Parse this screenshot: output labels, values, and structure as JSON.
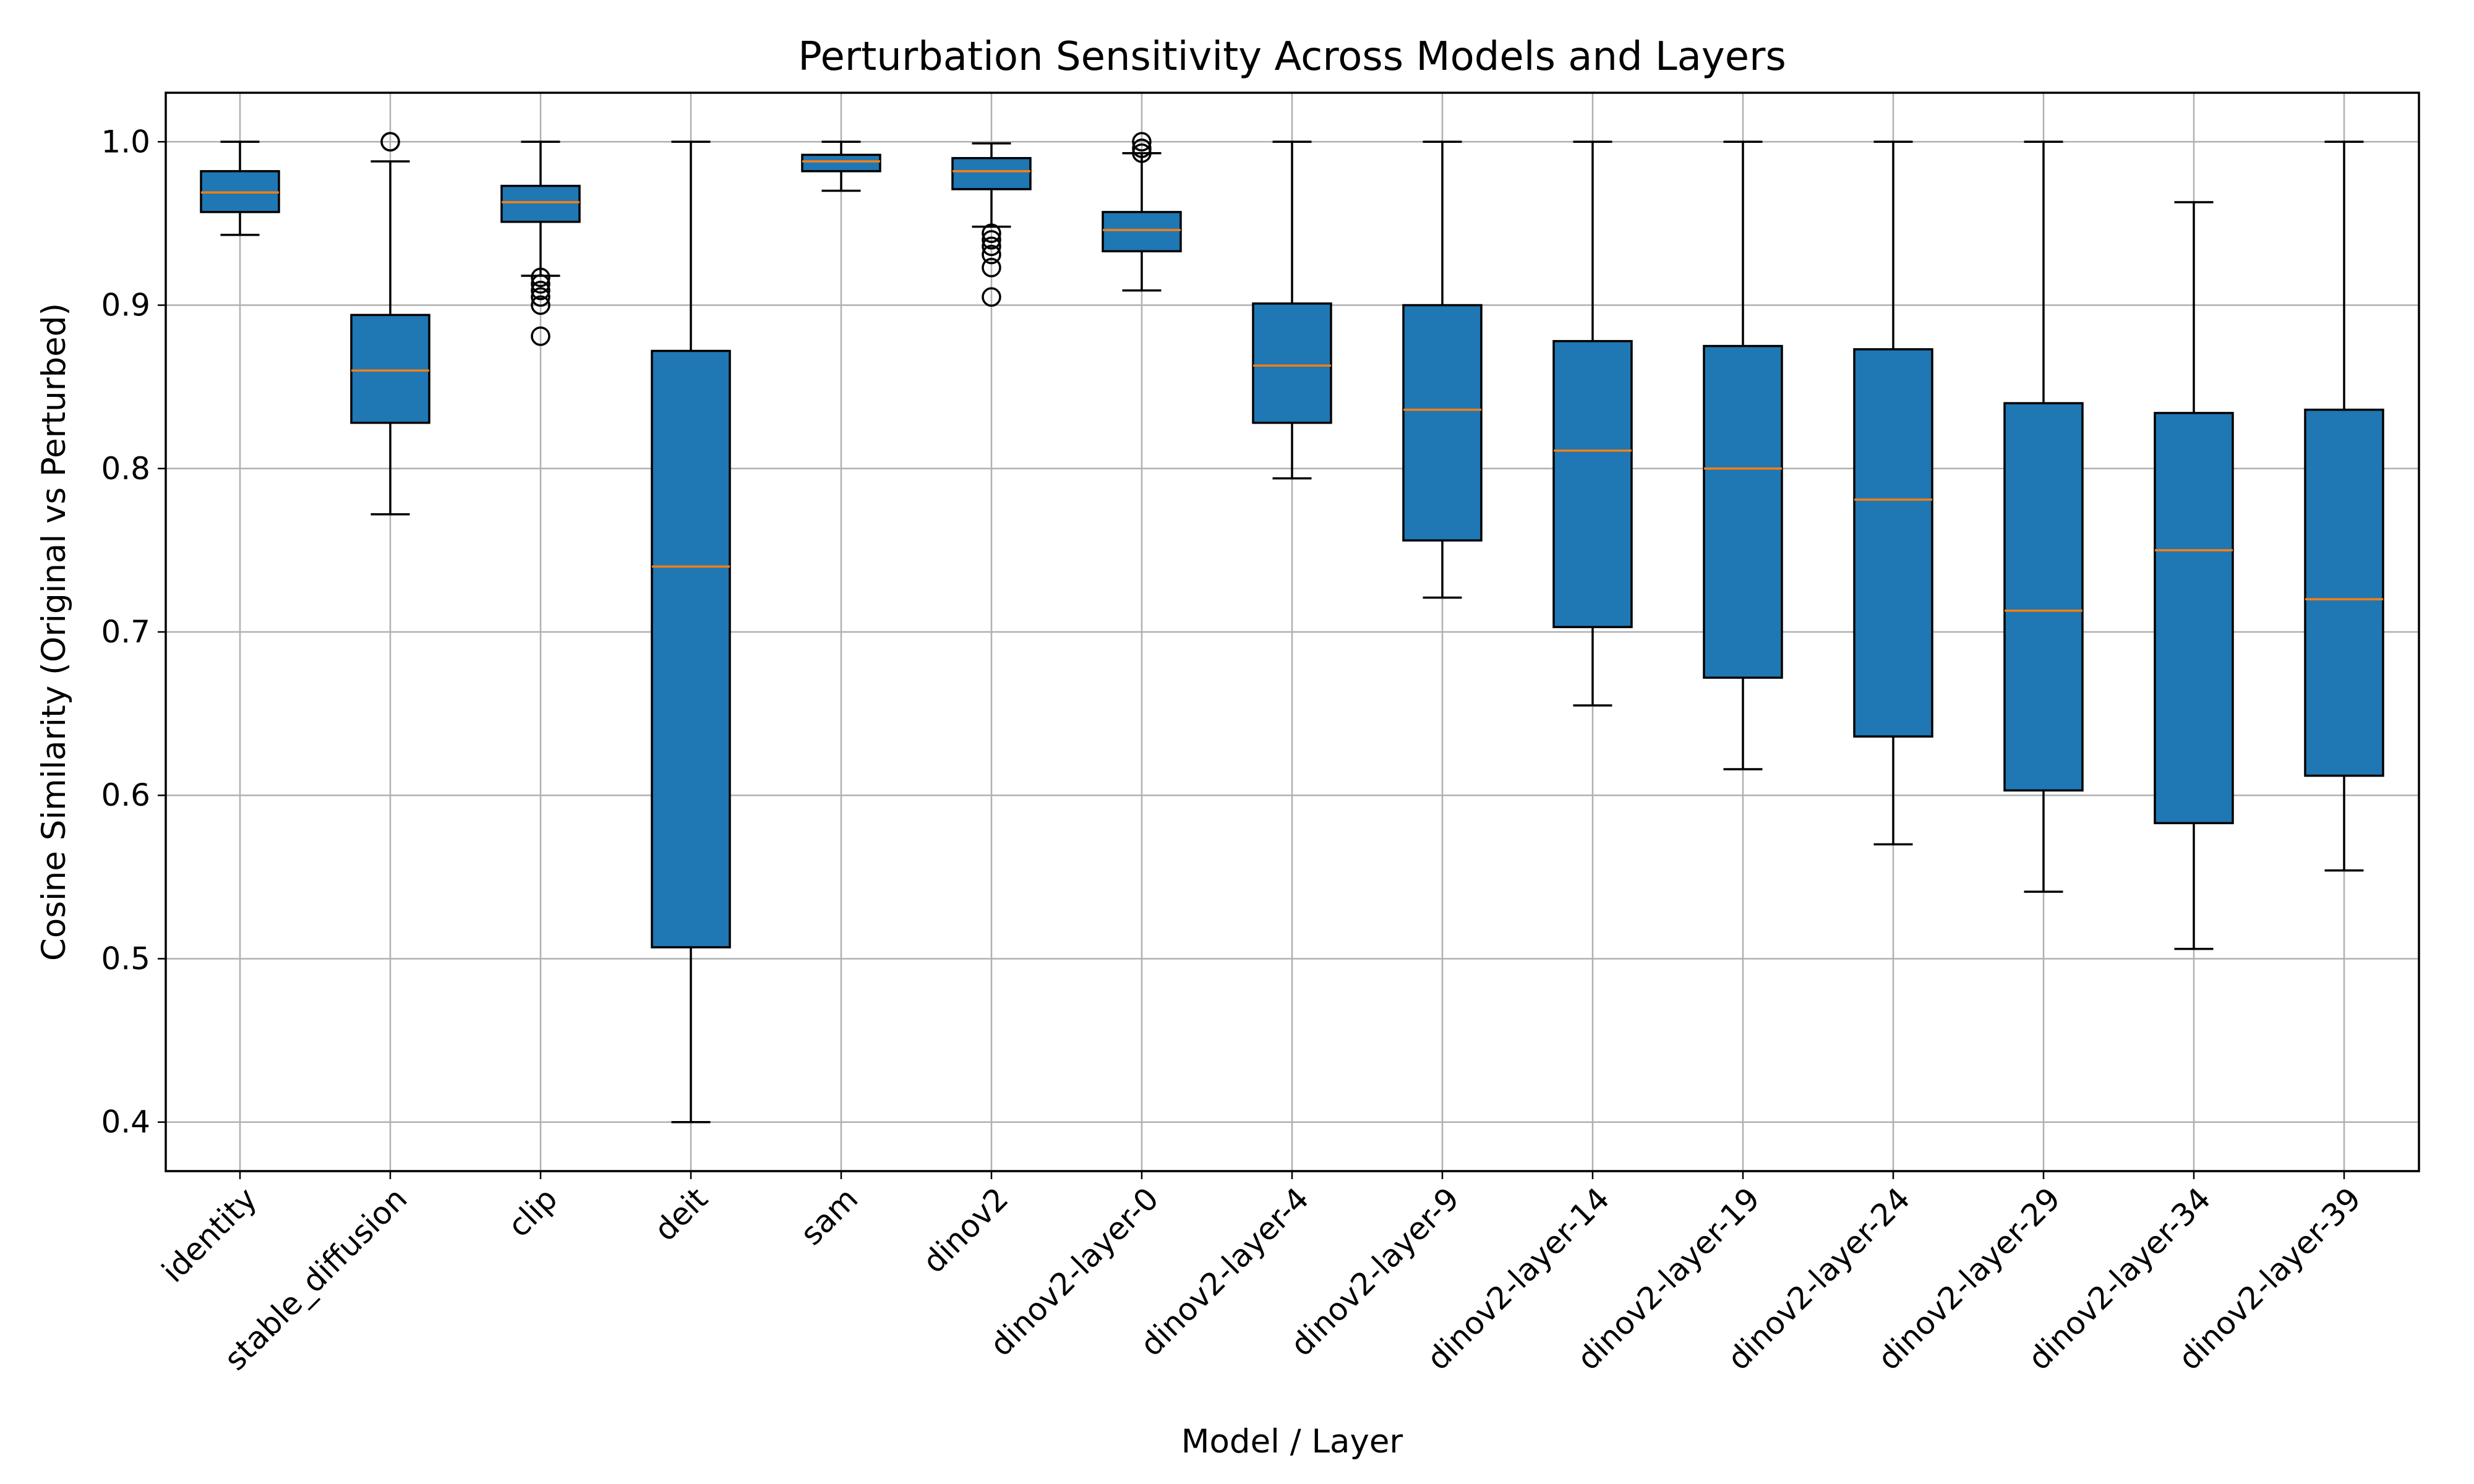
{
  "chart_data": {
    "type": "boxplot",
    "title": "Perturbation Sensitivity Across Models and Layers",
    "xlabel": "Model / Layer",
    "ylabel": "Cosine Similarity (Original vs Perturbed)",
    "ylim": [
      0.37,
      1.03
    ],
    "yticks": [
      "0.4",
      "0.5",
      "0.6",
      "0.7",
      "0.8",
      "0.9",
      "1.0"
    ],
    "grid": true,
    "box_color": "#1f77b4",
    "median_color": "#ff7f0e",
    "categories": [
      "identity",
      "stable_diffusion",
      "clip",
      "deit",
      "sam",
      "dinov2",
      "dinov2-layer-0",
      "dinov2-layer-4",
      "dinov2-layer-9",
      "dinov2-layer-14",
      "dinov2-layer-19",
      "dinov2-layer-24",
      "dinov2-layer-29",
      "dinov2-layer-34",
      "dinov2-layer-39"
    ],
    "boxes": [
      {
        "whislo": 0.943,
        "q1": 0.957,
        "med": 0.969,
        "q3": 0.982,
        "whishi": 1.0,
        "fliers": []
      },
      {
        "whislo": 0.772,
        "q1": 0.828,
        "med": 0.86,
        "q3": 0.894,
        "whishi": 0.988,
        "fliers": [
          1.0,
          1.0
        ]
      },
      {
        "whislo": 0.918,
        "q1": 0.951,
        "med": 0.963,
        "q3": 0.973,
        "whishi": 1.0,
        "fliers": [
          0.917,
          0.913,
          0.909,
          0.905,
          0.9,
          0.881
        ]
      },
      {
        "whislo": 0.4,
        "q1": 0.507,
        "med": 0.74,
        "q3": 0.872,
        "whishi": 1.0,
        "fliers": []
      },
      {
        "whislo": 0.97,
        "q1": 0.982,
        "med": 0.988,
        "q3": 0.992,
        "whishi": 1.0,
        "fliers": []
      },
      {
        "whislo": 0.948,
        "q1": 0.971,
        "med": 0.982,
        "q3": 0.99,
        "whishi": 0.999,
        "fliers": [
          0.944,
          0.94,
          0.936,
          0.931,
          0.923,
          0.905
        ]
      },
      {
        "whislo": 0.909,
        "q1": 0.933,
        "med": 0.946,
        "q3": 0.957,
        "whishi": 0.993,
        "fliers": [
          0.993,
          0.996,
          1.0
        ]
      },
      {
        "whislo": 0.794,
        "q1": 0.828,
        "med": 0.863,
        "q3": 0.901,
        "whishi": 1.0,
        "fliers": []
      },
      {
        "whislo": 0.721,
        "q1": 0.756,
        "med": 0.836,
        "q3": 0.9,
        "whishi": 1.0,
        "fliers": []
      },
      {
        "whislo": 0.655,
        "q1": 0.703,
        "med": 0.811,
        "q3": 0.878,
        "whishi": 1.0,
        "fliers": []
      },
      {
        "whislo": 0.616,
        "q1": 0.672,
        "med": 0.8,
        "q3": 0.875,
        "whishi": 1.0,
        "fliers": []
      },
      {
        "whislo": 0.57,
        "q1": 0.636,
        "med": 0.781,
        "q3": 0.873,
        "whishi": 1.0,
        "fliers": []
      },
      {
        "whislo": 0.541,
        "q1": 0.603,
        "med": 0.713,
        "q3": 0.84,
        "whishi": 1.0,
        "fliers": []
      },
      {
        "whislo": 0.506,
        "q1": 0.583,
        "med": 0.75,
        "q3": 0.834,
        "whishi": 0.963,
        "fliers": []
      },
      {
        "whislo": 0.554,
        "q1": 0.612,
        "med": 0.72,
        "q3": 0.836,
        "whishi": 1.0,
        "fliers": []
      }
    ]
  }
}
